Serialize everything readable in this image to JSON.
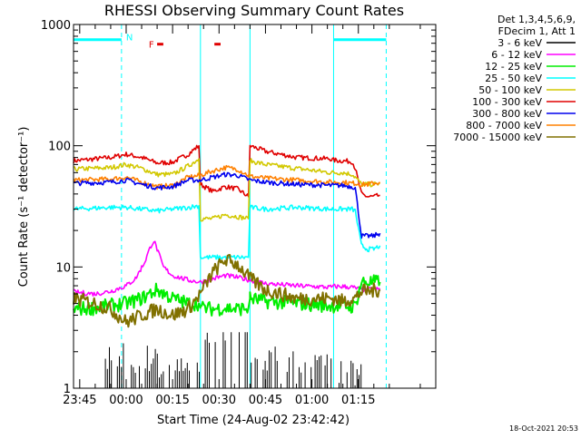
{
  "chart_data": {
    "type": "line",
    "title": "RHESSI Observing Summary Count Rates",
    "xlabel": "Start Time (24-Aug-02 23:42:42)",
    "ylabel": "Count Rate (s⁻¹ detector⁻¹)",
    "y_scale": "log",
    "ylim": [
      1,
      1000
    ],
    "y_ticks": [
      "1",
      "10",
      "100",
      "1000"
    ],
    "x_range_minutes": [
      -17,
      100
    ],
    "x_ticks": [
      {
        "label": "23:45",
        "t": -15
      },
      {
        "label": "00:00",
        "t": 0
      },
      {
        "label": "00:15",
        "t": 15
      },
      {
        "label": "00:30",
        "t": 30
      },
      {
        "label": "00:45",
        "t": 45
      },
      {
        "label": "01:00",
        "t": 60
      },
      {
        "label": "01:15",
        "t": 75
      }
    ],
    "legend": {
      "placement": "right",
      "header": [
        "Det 1,3,4,5,6,9,",
        "FDecim 1, Att 1"
      ],
      "entries": [
        {
          "label": "3 - 6 keV",
          "color": "#000000"
        },
        {
          "label": "6 - 12 keV",
          "color": "#ff00ff"
        },
        {
          "label": "12 - 25 keV",
          "color": "#00ee00"
        },
        {
          "label": "25 - 50 keV",
          "color": "#00ffff"
        },
        {
          "label": "50 - 100 keV",
          "color": "#d2c800"
        },
        {
          "label": "100 - 300 keV",
          "color": "#e00000"
        },
        {
          "label": "300 - 800 keV",
          "color": "#0000ee"
        },
        {
          "label": "800 - 7000 keV",
          "color": "#ff8000"
        },
        {
          "label": "7000 - 15000 keV",
          "color": "#807000"
        }
      ]
    },
    "annotations": [
      {
        "text": "N",
        "color": "#00ffff"
      },
      {
        "text": "F",
        "color": "#e00000"
      }
    ],
    "flags": {
      "night": {
        "color": "#00ffff",
        "value": 750,
        "intervals": [
          [
            -17,
            -1.5
          ],
          [
            67,
            84
          ]
        ]
      },
      "flare": {
        "color": "#e00000",
        "value": 750,
        "intervals": [
          [
            10,
            12
          ],
          [
            28.5,
            30.5
          ]
        ]
      }
    },
    "boundaries": [
      {
        "t": -1.5,
        "style": "dashed",
        "color": "#00ffff"
      },
      {
        "t": 67,
        "style": "solid",
        "color": "#00ffff"
      },
      {
        "t": 84,
        "style": "dashed",
        "color": "#00ffff"
      },
      {
        "t": 24,
        "style": "solid",
        "color": "#00ffff"
      },
      {
        "t": 40,
        "style": "solid",
        "color": "#00ffff"
      }
    ],
    "series": [
      {
        "label": "100 - 300 keV",
        "color": "#e00000",
        "points": [
          [
            -17,
            75
          ],
          [
            -5,
            80
          ],
          [
            0,
            85
          ],
          [
            5,
            80
          ],
          [
            10,
            72
          ],
          [
            15,
            73
          ],
          [
            20,
            85
          ],
          [
            23.5,
            100
          ],
          [
            24,
            48
          ],
          [
            28,
            42
          ],
          [
            32,
            46
          ],
          [
            36,
            44
          ],
          [
            39.5,
            38
          ],
          [
            40,
            100
          ],
          [
            45,
            90
          ],
          [
            55,
            80
          ],
          [
            66,
            78
          ],
          [
            67,
            76
          ],
          [
            70,
            75
          ],
          [
            73,
            74
          ],
          [
            74,
            65
          ],
          [
            76,
            40
          ],
          [
            78,
            38
          ],
          [
            80,
            38
          ],
          [
            82,
            39
          ]
        ]
      },
      {
        "label": "50 - 100 keV",
        "color": "#d2c800",
        "points": [
          [
            -17,
            64
          ],
          [
            -5,
            66
          ],
          [
            0,
            70
          ],
          [
            5,
            65
          ],
          [
            10,
            58
          ],
          [
            15,
            58
          ],
          [
            20,
            68
          ],
          [
            23.5,
            78
          ],
          [
            24,
            25
          ],
          [
            28,
            25
          ],
          [
            32,
            27
          ],
          [
            36,
            26
          ],
          [
            39.5,
            25
          ],
          [
            40,
            75
          ],
          [
            45,
            70
          ],
          [
            55,
            65
          ],
          [
            66,
            60
          ],
          [
            67,
            60
          ],
          [
            70,
            60
          ],
          [
            73,
            58
          ],
          [
            74,
            55
          ],
          [
            76,
            48
          ],
          [
            78,
            48
          ],
          [
            80,
            48
          ],
          [
            82,
            49
          ]
        ]
      },
      {
        "label": "800 - 7000 keV",
        "color": "#ff8000",
        "points": [
          [
            -17,
            52
          ],
          [
            -5,
            53
          ],
          [
            0,
            55
          ],
          [
            5,
            50
          ],
          [
            10,
            46
          ],
          [
            15,
            47
          ],
          [
            20,
            55
          ],
          [
            24,
            57
          ],
          [
            28,
            62
          ],
          [
            32,
            66
          ],
          [
            36,
            64
          ],
          [
            40,
            56
          ],
          [
            45,
            54
          ],
          [
            55,
            52
          ],
          [
            66,
            50
          ],
          [
            67,
            50
          ],
          [
            70,
            50
          ],
          [
            73,
            49
          ],
          [
            74,
            49
          ],
          [
            76,
            48
          ],
          [
            78,
            48
          ],
          [
            80,
            49
          ],
          [
            82,
            50
          ]
        ]
      },
      {
        "label": "300 - 800 keV",
        "color": "#0000ee",
        "points": [
          [
            -17,
            49
          ],
          [
            -5,
            50
          ],
          [
            0,
            52
          ],
          [
            5,
            48
          ],
          [
            10,
            45
          ],
          [
            15,
            46
          ],
          [
            20,
            52
          ],
          [
            24,
            52
          ],
          [
            28,
            55
          ],
          [
            32,
            58
          ],
          [
            36,
            57
          ],
          [
            40,
            52
          ],
          [
            45,
            50
          ],
          [
            55,
            48
          ],
          [
            66,
            47
          ],
          [
            67,
            47
          ],
          [
            70,
            47
          ],
          [
            73,
            46
          ],
          [
            74,
            45
          ],
          [
            76,
            18
          ],
          [
            78,
            18
          ],
          [
            80,
            18
          ],
          [
            82,
            19
          ]
        ]
      },
      {
        "label": "25 - 50 keV",
        "color": "#00ffff",
        "points": [
          [
            -17,
            30
          ],
          [
            -5,
            31
          ],
          [
            0,
            31
          ],
          [
            5,
            30
          ],
          [
            10,
            29
          ],
          [
            15,
            30
          ],
          [
            20,
            31
          ],
          [
            23.5,
            32
          ],
          [
            24,
            12
          ],
          [
            28,
            12
          ],
          [
            32,
            12
          ],
          [
            36,
            12
          ],
          [
            39.5,
            12
          ],
          [
            40,
            31
          ],
          [
            45,
            30
          ],
          [
            55,
            31
          ],
          [
            66,
            30
          ],
          [
            67,
            30
          ],
          [
            70,
            30
          ],
          [
            73,
            30
          ],
          [
            74,
            29
          ],
          [
            76,
            15
          ],
          [
            78,
            14
          ],
          [
            80,
            14
          ],
          [
            82,
            15
          ]
        ]
      },
      {
        "label": "6 - 12 keV",
        "color": "#ff00ff",
        "points": [
          [
            -17,
            6.2
          ],
          [
            -10,
            6.0
          ],
          [
            -5,
            6.3
          ],
          [
            0,
            7.0
          ],
          [
            3,
            8.0
          ],
          [
            6,
            11
          ],
          [
            8,
            15
          ],
          [
            9,
            16.5
          ],
          [
            10,
            14
          ],
          [
            12,
            10
          ],
          [
            15,
            8.5
          ],
          [
            20,
            7.8
          ],
          [
            24,
            7.5
          ],
          [
            28,
            8
          ],
          [
            32,
            8.5
          ],
          [
            36,
            8.2
          ],
          [
            40,
            7.8
          ],
          [
            45,
            7.3
          ],
          [
            55,
            7.0
          ],
          [
            66,
            6.8
          ],
          [
            67,
            6.9
          ],
          [
            70,
            6.9
          ],
          [
            73,
            6.8
          ],
          [
            74,
            6.7
          ],
          [
            76,
            6.5
          ],
          [
            78,
            6.5
          ],
          [
            80,
            6.6
          ],
          [
            82,
            6.5
          ]
        ]
      },
      {
        "label": "12 - 25 keV",
        "color": "#00ee00",
        "points": [
          [
            -17,
            4.5
          ],
          [
            -10,
            4.6
          ],
          [
            -5,
            4.8
          ],
          [
            0,
            5.0
          ],
          [
            5,
            5.5
          ],
          [
            10,
            6.5
          ],
          [
            15,
            5.5
          ],
          [
            20,
            5.0
          ],
          [
            23.5,
            5.0
          ],
          [
            24,
            4.6
          ],
          [
            28,
            4.5
          ],
          [
            32,
            4.6
          ],
          [
            36,
            4.5
          ],
          [
            39.5,
            4.6
          ],
          [
            40,
            5.5
          ],
          [
            45,
            5.2
          ],
          [
            55,
            5.0
          ],
          [
            66,
            4.8
          ],
          [
            67,
            4.8
          ],
          [
            70,
            4.8
          ],
          [
            73,
            4.7
          ],
          [
            74,
            4.8
          ],
          [
            76,
            7.5
          ],
          [
            78,
            7.5
          ],
          [
            80,
            7.5
          ],
          [
            82,
            7.5
          ]
        ]
      },
      {
        "label": "7000 - 15000 keV",
        "color": "#807000",
        "points": [
          [
            -17,
            5.5
          ],
          [
            -10,
            5.0
          ],
          [
            -5,
            4.5
          ],
          [
            0,
            3.5
          ],
          [
            5,
            4.0
          ],
          [
            10,
            4.5
          ],
          [
            15,
            4.0
          ],
          [
            20,
            4.5
          ],
          [
            24,
            6.0
          ],
          [
            28,
            9.0
          ],
          [
            32,
            11.5
          ],
          [
            36,
            10.5
          ],
          [
            40,
            8.0
          ],
          [
            45,
            6.5
          ],
          [
            55,
            5.5
          ],
          [
            66,
            5.5
          ],
          [
            67,
            5.5
          ],
          [
            70,
            5.2
          ],
          [
            73,
            5.5
          ],
          [
            74,
            5.5
          ],
          [
            76,
            6.3
          ],
          [
            78,
            6.3
          ],
          [
            80,
            6.4
          ],
          [
            82,
            6.5
          ]
        ]
      },
      {
        "label": "3 - 6 keV",
        "color": "#000000",
        "points": [
          [
            -8,
            1.5
          ],
          [
            -4,
            1.6
          ],
          [
            0,
            1.2
          ],
          [
            5,
            1.5
          ],
          [
            10,
            1.3
          ],
          [
            20,
            1.5
          ],
          [
            24,
            2.5
          ],
          [
            28,
            2.6
          ],
          [
            32,
            2.7
          ],
          [
            36,
            2.6
          ],
          [
            40,
            1.4
          ],
          [
            45,
            1.5
          ],
          [
            55,
            1.3
          ],
          [
            66,
            1.2
          ],
          [
            70,
            1.2
          ],
          [
            73,
            1.1
          ],
          [
            76,
            1.0
          ]
        ]
      }
    ]
  },
  "footer": {
    "timestamp": "18-Oct-2021 20:53"
  }
}
